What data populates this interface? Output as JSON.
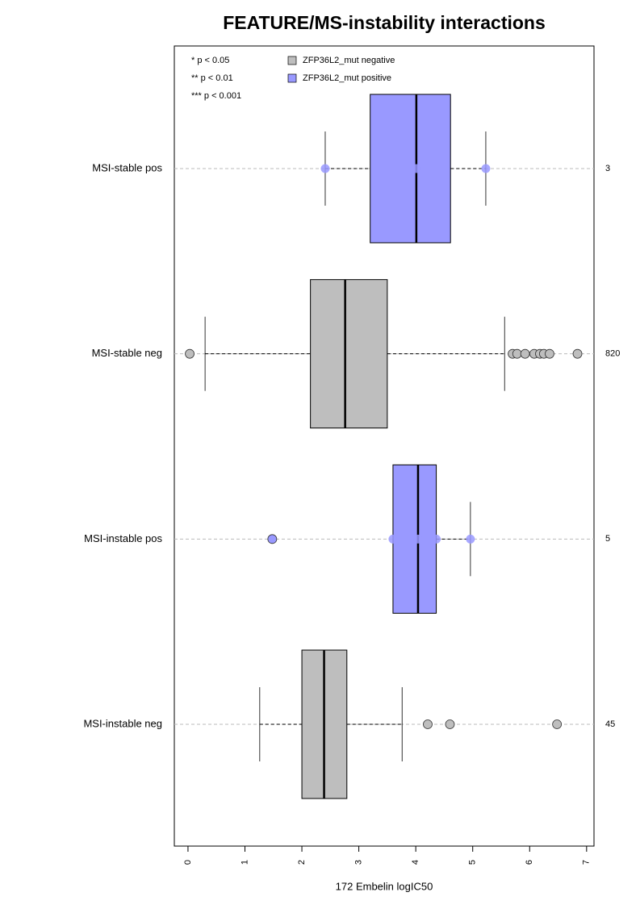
{
  "chart_data": {
    "type": "boxplot",
    "title": "FEATURE/MS-instability interactions",
    "xlabel": "172 Embelin logIC50",
    "xlim": [
      -0.24,
      7.13
    ],
    "xticks": [
      0,
      1,
      2,
      3,
      4,
      5,
      6,
      7
    ],
    "significance_labels": [
      "* p < 0.05",
      "** p < 0.01",
      "*** p < 0.001"
    ],
    "series": [
      {
        "name": "ZFP36L2_mut negative",
        "color": "#bebebe"
      },
      {
        "name": "ZFP36L2_mut positive",
        "color": "#9999ff"
      }
    ],
    "categories": [
      "MSI-stable pos",
      "MSI-stable neg",
      "MSI-instable pos",
      "MSI-instable neg"
    ],
    "counts": [
      3,
      820,
      5,
      45
    ],
    "groups": [
      {
        "color": "#9999ff",
        "q1": 3.2,
        "median": 4.01,
        "q3": 4.61,
        "whisker_low": 2.41,
        "whisker_high": 5.23,
        "points": [
          2.41,
          4.01,
          5.23
        ],
        "outliers": []
      },
      {
        "color": "#bebebe",
        "q1": 2.15,
        "median": 2.76,
        "q3": 3.5,
        "whisker_low": 0.3,
        "whisker_high": 5.56,
        "points": [],
        "outliers": [
          0.03,
          5.7,
          5.78,
          5.92,
          6.08,
          6.18,
          6.25,
          6.35,
          6.84
        ]
      },
      {
        "color": "#9999ff",
        "q1": 3.6,
        "median": 4.04,
        "q3": 4.36,
        "whisker_low": 3.6,
        "whisker_high": 4.96,
        "points": [
          3.6,
          4.04,
          4.36,
          4.96
        ],
        "outliers": [
          1.48
        ]
      },
      {
        "color": "#bebebe",
        "q1": 2.0,
        "median": 2.39,
        "q3": 2.79,
        "whisker_low": 1.26,
        "whisker_high": 3.76,
        "points": [],
        "outliers": [
          4.21,
          4.6,
          6.48
        ]
      }
    ]
  }
}
